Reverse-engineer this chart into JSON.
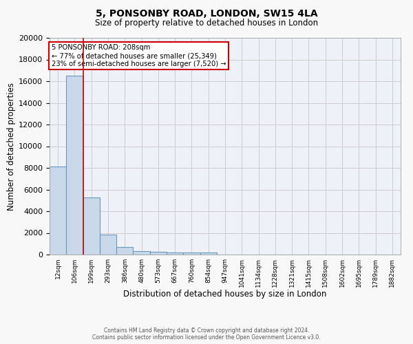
{
  "title1": "5, PONSONBY ROAD, LONDON, SW15 4LA",
  "title2": "Size of property relative to detached houses in London",
  "xlabel": "Distribution of detached houses by size in London",
  "ylabel": "Number of detached properties",
  "categories": [
    "12sqm",
    "106sqm",
    "199sqm",
    "293sqm",
    "386sqm",
    "480sqm",
    "573sqm",
    "667sqm",
    "760sqm",
    "854sqm",
    "947sqm",
    "1041sqm",
    "1134sqm",
    "1228sqm",
    "1321sqm",
    "1415sqm",
    "1508sqm",
    "1602sqm",
    "1695sqm",
    "1789sqm",
    "1882sqm"
  ],
  "values": [
    8100,
    16500,
    5300,
    1850,
    700,
    320,
    230,
    210,
    180,
    160,
    0,
    0,
    0,
    0,
    0,
    0,
    0,
    0,
    0,
    0,
    0
  ],
  "bar_color": "#c8d8e8",
  "bar_edge_color": "#6699bb",
  "red_line_x": 1.5,
  "red_line_color": "#cc0000",
  "annotation_text": "5 PONSONBY ROAD: 208sqm\n← 77% of detached houses are smaller (25,349)\n23% of semi-detached houses are larger (7,520) →",
  "annotation_box_color": "#ffffff",
  "annotation_box_edge": "#cc0000",
  "ylim": [
    0,
    20000
  ],
  "yticks": [
    0,
    2000,
    4000,
    6000,
    8000,
    10000,
    12000,
    14000,
    16000,
    18000,
    20000
  ],
  "grid_color": "#cccccc",
  "bg_color": "#eef2f8",
  "fig_bg_color": "#f8f8f8",
  "footer1": "Contains HM Land Registry data © Crown copyright and database right 2024.",
  "footer2": "Contains public sector information licensed under the Open Government Licence v3.0."
}
